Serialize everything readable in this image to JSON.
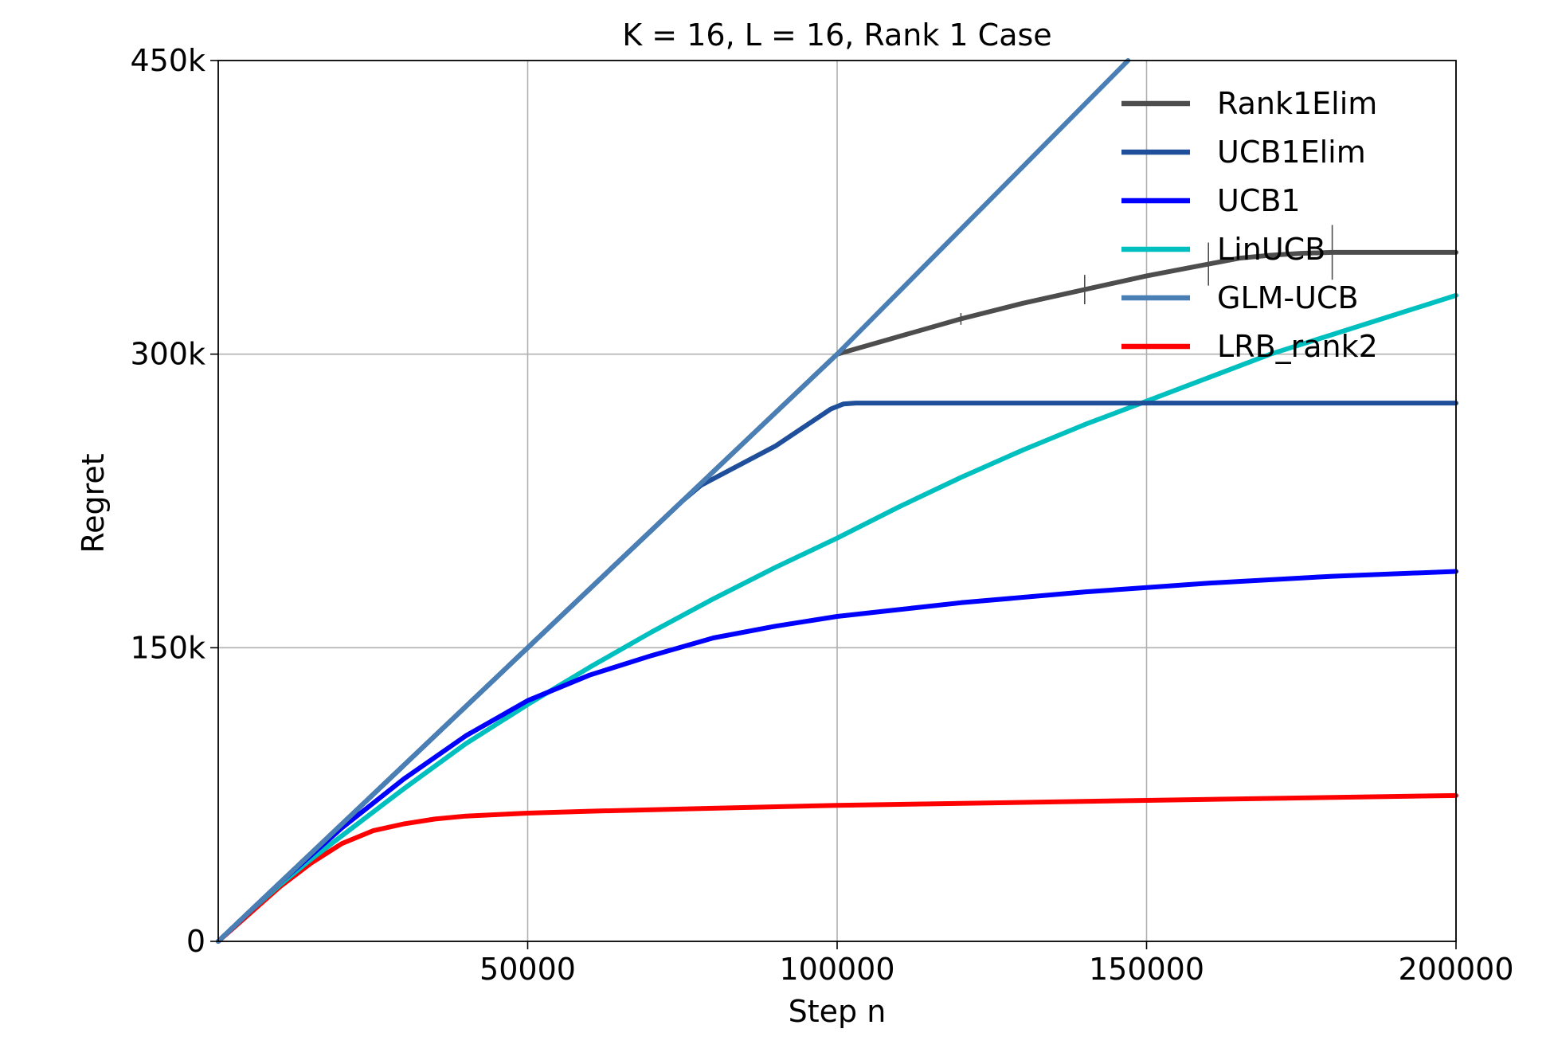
{
  "chart_data": {
    "type": "line",
    "title": "K = 16, L = 16, Rank 1 Case",
    "xlabel": "Step n",
    "ylabel": "Regret",
    "xlim": [
      0,
      200000
    ],
    "ylim": [
      0,
      450000
    ],
    "x_ticks": [
      {
        "value": 50000,
        "label": "50000"
      },
      {
        "value": 100000,
        "label": "100000"
      },
      {
        "value": 150000,
        "label": "150000"
      },
      {
        "value": 200000,
        "label": "200000"
      }
    ],
    "y_ticks": [
      {
        "value": 0,
        "label": "0"
      },
      {
        "value": 150000,
        "label": "150k"
      },
      {
        "value": 300000,
        "label": "300k"
      },
      {
        "value": 450000,
        "label": "450k"
      }
    ],
    "grid": true,
    "legend_position": "top-right",
    "series": [
      {
        "name": "Rank1Elim",
        "color": "#4d4d4d",
        "x": [
          0,
          25000,
          50000,
          75000,
          100000,
          110000,
          120000,
          130000,
          140000,
          150000,
          160000,
          165000,
          170000,
          175000,
          180000,
          185000,
          200000
        ],
        "y": [
          0,
          75000,
          150000,
          225000,
          300000,
          309000,
          318000,
          326000,
          333000,
          340000,
          346000,
          349000,
          350500,
          351500,
          352000,
          352000,
          352000
        ],
        "error_bars": [
          {
            "x": 120000,
            "half": 3000
          },
          {
            "x": 140000,
            "half": 7500
          },
          {
            "x": 160000,
            "half": 11000
          },
          {
            "x": 180000,
            "half": 14000
          }
        ]
      },
      {
        "name": "UCB1Elim",
        "color": "#1f4e9a",
        "x": [
          0,
          25000,
          50000,
          75000,
          78000,
          90000,
          99000,
          101000,
          103000,
          120000,
          150000,
          200000
        ],
        "y": [
          0,
          75000,
          150000,
          225000,
          233000,
          253000,
          272000,
          274500,
          275000,
          275000,
          275000,
          275000
        ]
      },
      {
        "name": "UCB1",
        "color": "#0000ff",
        "x": [
          0,
          5000,
          10000,
          15000,
          20000,
          30000,
          40000,
          50000,
          60000,
          70000,
          80000,
          90000,
          100000,
          120000,
          140000,
          160000,
          180000,
          200000
        ],
        "y": [
          0,
          15000,
          30000,
          44000,
          58000,
          83000,
          105000,
          123000,
          136000,
          146000,
          155000,
          161000,
          166000,
          173000,
          178500,
          183000,
          186500,
          189000
        ]
      },
      {
        "name": "LinUCB",
        "color": "#00bfbf",
        "x": [
          0,
          5000,
          10000,
          15000,
          20000,
          30000,
          40000,
          50000,
          60000,
          70000,
          80000,
          90000,
          100000,
          110000,
          120000,
          130000,
          140000,
          150000,
          160000,
          170000,
          180000,
          190000,
          200000
        ],
        "y": [
          0,
          15000,
          29000,
          42000,
          54000,
          78000,
          101000,
          121000,
          140000,
          158000,
          175000,
          191000,
          206000,
          222000,
          237000,
          251000,
          264000,
          276000,
          288000,
          300000,
          310000,
          320000,
          330000
        ]
      },
      {
        "name": "GLM-UCB",
        "color": "#4a7fb5",
        "x": [
          0,
          50000,
          100000,
          147000
        ],
        "y": [
          0,
          150000,
          300000,
          450000
        ]
      },
      {
        "name": "LRB_rank2",
        "color": "#ff0000",
        "x": [
          0,
          5000,
          10000,
          15000,
          20000,
          25000,
          30000,
          35000,
          40000,
          50000,
          60000,
          80000,
          100000,
          150000,
          200000
        ],
        "y": [
          0,
          14000,
          28000,
          40000,
          50000,
          56500,
          60000,
          62500,
          64000,
          65500,
          66500,
          68000,
          69500,
          72000,
          74500
        ]
      }
    ]
  }
}
